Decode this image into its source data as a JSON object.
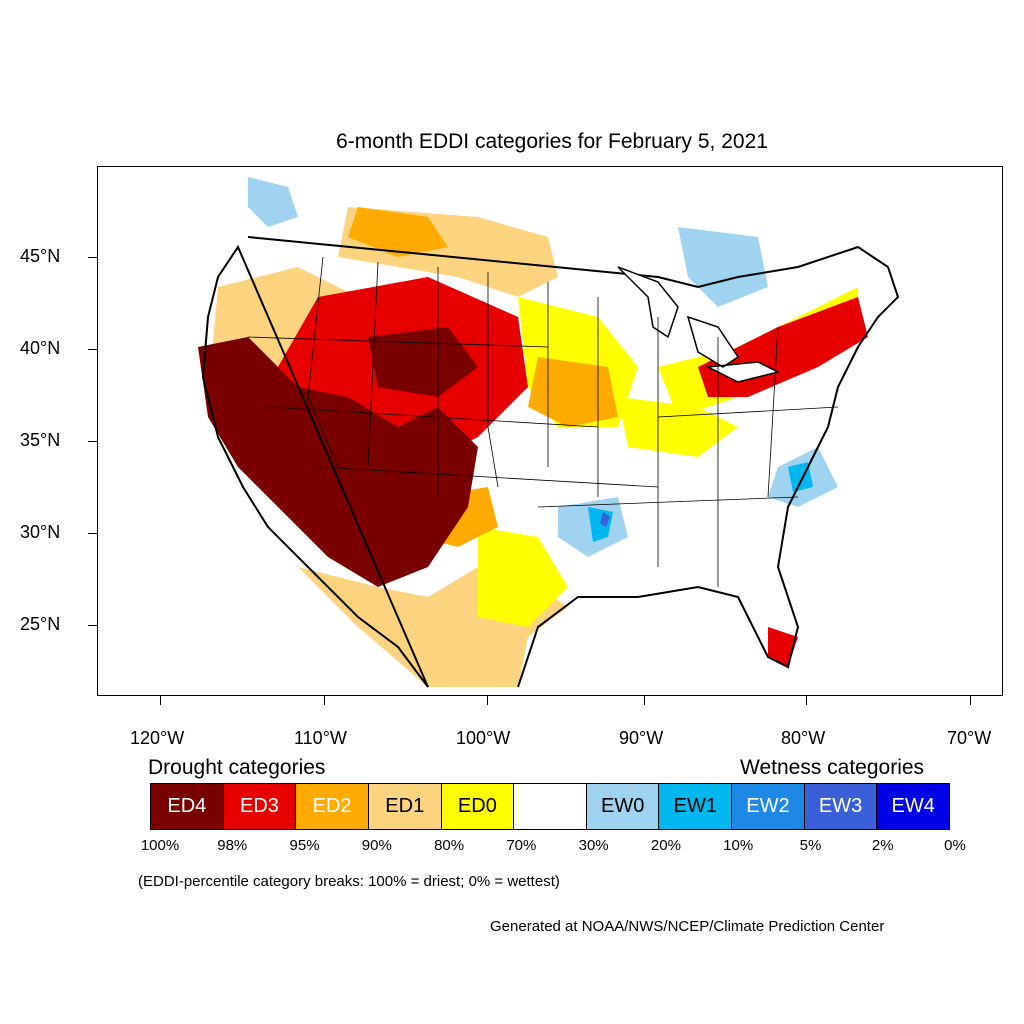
{
  "title": "6-month EDDI categories for February 5, 2021",
  "map": {
    "lat_labels": [
      "45°N",
      "40°N",
      "35°N",
      "30°N",
      "25°N"
    ],
    "lon_labels": [
      "120°W",
      "110°W",
      "100°W",
      "90°W",
      "80°W",
      "70°W"
    ],
    "region": "Contiguous United States"
  },
  "legend": {
    "drought_heading": "Drought categories",
    "wetness_heading": "Wetness categories",
    "categories": [
      {
        "label": "ED4",
        "color": "#7a0000",
        "text_color": "#ffffff"
      },
      {
        "label": "ED3",
        "color": "#e60000",
        "text_color": "#ffffff"
      },
      {
        "label": "ED2",
        "color": "#ffaa00",
        "text_color": "#ffffff"
      },
      {
        "label": "ED1",
        "color": "#fcd37f",
        "text_color": "#000000"
      },
      {
        "label": "ED0",
        "color": "#ffff00",
        "text_color": "#000000"
      },
      {
        "label": "",
        "color": "#ffffff",
        "text_color": "#000000"
      },
      {
        "label": "EW0",
        "color": "#9fd3f0",
        "text_color": "#000000"
      },
      {
        "label": "EW1",
        "color": "#00b7f0",
        "text_color": "#000000"
      },
      {
        "label": "EW2",
        "color": "#1e88e5",
        "text_color": "#ffffff"
      },
      {
        "label": "EW3",
        "color": "#3a5fd9",
        "text_color": "#ffffff"
      },
      {
        "label": "EW4",
        "color": "#0000e6",
        "text_color": "#ffffff"
      }
    ],
    "percent_breaks": [
      "100%",
      "98%",
      "95%",
      "90%",
      "80%",
      "70%",
      "30%",
      "20%",
      "10%",
      "5%",
      "2%",
      "0%"
    ]
  },
  "note": "(EDDI-percentile category breaks: 100% = driest; 0% = wettest)",
  "credit": "Generated at NOAA/NWS/NCEP/Climate Prediction Center"
}
